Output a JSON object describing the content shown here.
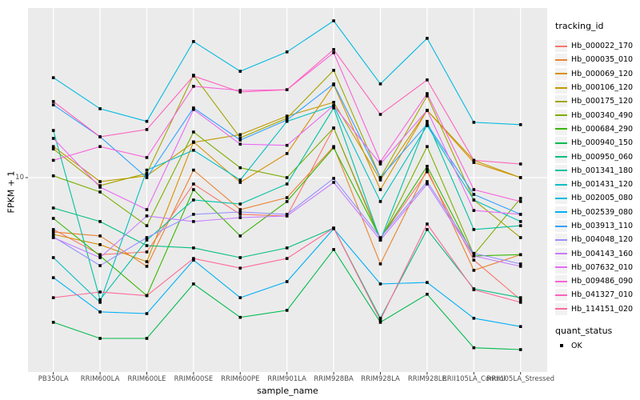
{
  "chart_data": {
    "type": "line",
    "title": "",
    "xlabel": "sample_name",
    "ylabel": "FPKM + 1",
    "yscale": "log10",
    "y_tick_label": "10",
    "y_tick_value": 10,
    "ylim": [
      1.07,
      70.5
    ],
    "grid": "major-only",
    "panel_background": "#EBEBEB",
    "gridline_color": "#FFFFFF",
    "axis_text_color": "#4d4d4d",
    "marker": "black-square",
    "marker_color": "#000000",
    "legend_position": "right",
    "legend": {
      "tracking_title": "tracking_id",
      "quant_title": "quant_status",
      "quant_value": "OK"
    },
    "x_categories": [
      "PB350LA",
      "RRIM600LA",
      "RRIM600LE",
      "RRIM600SE",
      "RRIM600PE",
      "RRIM901LA",
      "RRIM928BA",
      "RRIM928LA",
      "RRIM928LE",
      "RRII105LA_Control",
      "RRII105LA_Stressed"
    ],
    "series": [
      {
        "name": "Hb_000022_170",
        "color": "#F8766D",
        "values": [
          5.5,
          4.12,
          4.25,
          9.29,
          6.55,
          6.43,
          17.7,
          4.97,
          10.7,
          3.87,
          2.45
        ]
      },
      {
        "name": "Hb_000035_010",
        "color": "#EA8331",
        "values": [
          5.35,
          5.11,
          3.6,
          10.9,
          6.92,
          7.94,
          14.3,
          3.7,
          11.0,
          3.44,
          4.12
        ]
      },
      {
        "name": "Hb_000069_120",
        "color": "#D89000",
        "values": [
          5.2,
          4.62,
          3.8,
          15.1,
          9.46,
          13.2,
          29.1,
          8.71,
          21.7,
          11.9,
          10.0
        ]
      },
      {
        "name": "Hb_000106_120",
        "color": "#C09B00",
        "values": [
          14.3,
          9.55,
          10.2,
          15.0,
          16.4,
          20.3,
          23.8,
          9.73,
          21.7,
          12.2,
          10.0
        ]
      },
      {
        "name": "Hb_000175_120",
        "color": "#A3A500",
        "values": [
          13.9,
          9.12,
          10.5,
          32.5,
          15.8,
          19.8,
          34.4,
          10.0,
          25.6,
          7.73,
          5.01
        ]
      },
      {
        "name": "Hb_000340_490",
        "color": "#7CAE00",
        "values": [
          10.2,
          8.47,
          5.75,
          16.9,
          11.2,
          10.0,
          17.7,
          4.87,
          14.3,
          4.12,
          7.87
        ]
      },
      {
        "name": "Hb_000684_290",
        "color": "#39B600",
        "values": [
          6.25,
          4.06,
          2.57,
          8.71,
          5.11,
          7.59,
          14.1,
          4.97,
          11.4,
          4.06,
          4.12
        ]
      },
      {
        "name": "Hb_000940_150",
        "color": "#00BB4E",
        "values": [
          1.89,
          1.57,
          1.57,
          2.94,
          2.0,
          2.17,
          4.37,
          1.89,
          2.61,
          1.41,
          1.38
        ]
      },
      {
        "name": "Hb_000950_060",
        "color": "#00BF7D",
        "values": [
          7.05,
          6.03,
          4.57,
          4.45,
          3.98,
          4.45,
          5.59,
          1.98,
          5.5,
          2.78,
          2.51
        ]
      },
      {
        "name": "Hb_001341_180",
        "color": "#00C1A3",
        "values": [
          17.2,
          2.45,
          4.87,
          7.73,
          7.38,
          9.29,
          22.3,
          4.87,
          19.1,
          5.5,
          5.75
        ]
      },
      {
        "name": "Hb_001431_120",
        "color": "#00BFC4",
        "values": [
          3.98,
          2.38,
          10.9,
          13.7,
          9.73,
          19.1,
          22.9,
          7.59,
          18.2,
          7.73,
          6.03
        ]
      },
      {
        "name": "Hb_002005_080",
        "color": "#00BAE0",
        "values": [
          31.6,
          22.1,
          19.1,
          47.9,
          34.0,
          42.5,
          60.8,
          29.4,
          49.7,
          18.9,
          18.4
        ]
      },
      {
        "name": "Hb_002539_080",
        "color": "#00B0F6",
        "values": [
          3.16,
          2.13,
          2.09,
          3.87,
          2.51,
          3.02,
          5.55,
          2.94,
          2.99,
          1.98,
          1.8
        ]
      },
      {
        "name": "Hb_003913_110",
        "color": "#35A2FF",
        "values": [
          23.1,
          16.0,
          10.0,
          22.3,
          15.4,
          19.4,
          29.4,
          10.0,
          18.5,
          8.24,
          6.55
        ]
      },
      {
        "name": "Hb_004048_120",
        "color": "#9590FF",
        "values": [
          5.06,
          3.63,
          5.01,
          6.55,
          6.73,
          6.55,
          9.91,
          5.01,
          9.55,
          4.18,
          3.7
        ]
      },
      {
        "name": "Hb_004143_160",
        "color": "#C77CFF",
        "values": [
          5.01,
          3.98,
          6.43,
          6.03,
          6.31,
          6.43,
          9.46,
          4.87,
          9.29,
          4.06,
          3.6
        ]
      },
      {
        "name": "Hb_007632_010",
        "color": "#E76BF3",
        "values": [
          15.7,
          8.95,
          6.92,
          21.9,
          14.7,
          14.5,
          22.9,
          11.7,
          21.7,
          6.85,
          6.55
        ]
      },
      {
        "name": "Hb_009486_090",
        "color": "#FA62DB",
        "values": [
          12.2,
          14.3,
          12.6,
          28.6,
          27.3,
          27.5,
          42.1,
          12.0,
          26.3,
          8.71,
          7.59
        ]
      },
      {
        "name": "Hb_041327_010",
        "color": "#FF62BC",
        "values": [
          24.0,
          16.0,
          17.4,
          32.2,
          26.8,
          27.5,
          43.7,
          20.7,
          30.8,
          12.2,
          11.7
        ]
      },
      {
        "name": "Hb_114151_020",
        "color": "#FF6A98",
        "values": [
          2.51,
          2.68,
          2.57,
          3.94,
          3.53,
          3.94,
          5.59,
          1.94,
          5.86,
          2.75,
          2.38
        ]
      }
    ]
  }
}
